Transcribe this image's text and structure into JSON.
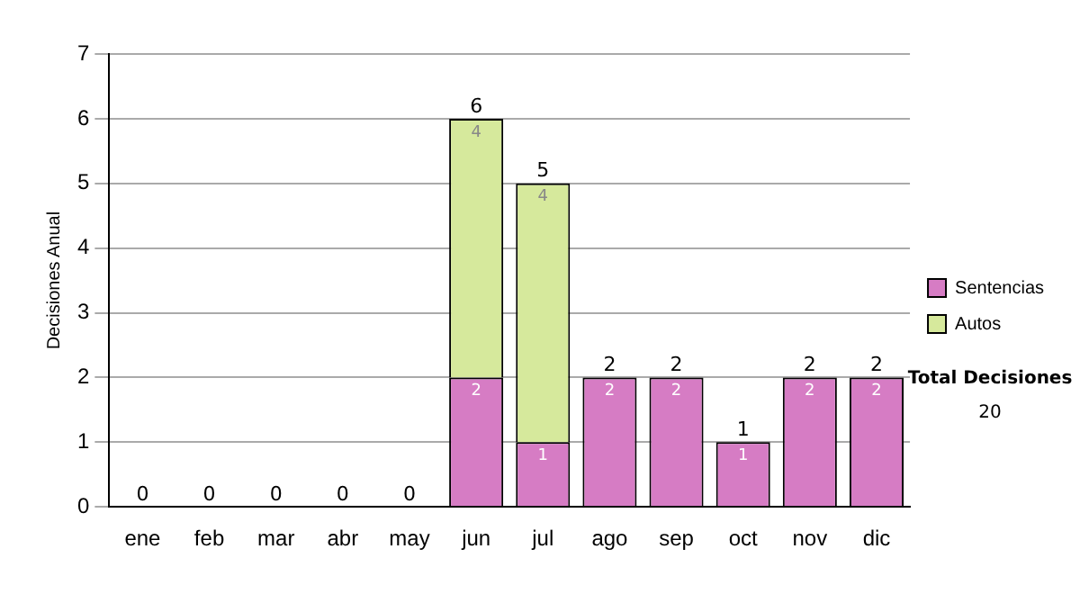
{
  "chart_data": {
    "type": "bar",
    "stacked": true,
    "ylabel": "Decisiones Anual",
    "categories": [
      "ene",
      "feb",
      "mar",
      "abr",
      "may",
      "jun",
      "jul",
      "ago",
      "sep",
      "oct",
      "nov",
      "dic"
    ],
    "series": [
      {
        "name": "Sentencias",
        "color": "#d67cc4",
        "values": [
          0,
          0,
          0,
          0,
          0,
          2,
          1,
          2,
          2,
          1,
          2,
          2
        ],
        "value_labels": [
          null,
          null,
          null,
          null,
          null,
          "2",
          "1",
          "2",
          "2",
          "1",
          "2",
          "2"
        ]
      },
      {
        "name": "Autos",
        "color": "#d6e99c",
        "values": [
          0,
          0,
          0,
          0,
          0,
          4,
          4,
          0,
          0,
          0,
          0,
          0
        ],
        "value_labels": [
          null,
          null,
          null,
          null,
          null,
          "4",
          "4",
          null,
          null,
          null,
          null,
          null
        ]
      }
    ],
    "totals": [
      "0",
      "0",
      "0",
      "0",
      "0",
      "6",
      "5",
      "2",
      "2",
      "1",
      "2",
      "2"
    ],
    "ylim": [
      0,
      7
    ],
    "yticks": [
      0,
      1,
      2,
      3,
      4,
      5,
      6,
      7
    ],
    "grid": "y",
    "legend": "right",
    "annotations": [
      "Total Decisiones",
      "20"
    ]
  }
}
